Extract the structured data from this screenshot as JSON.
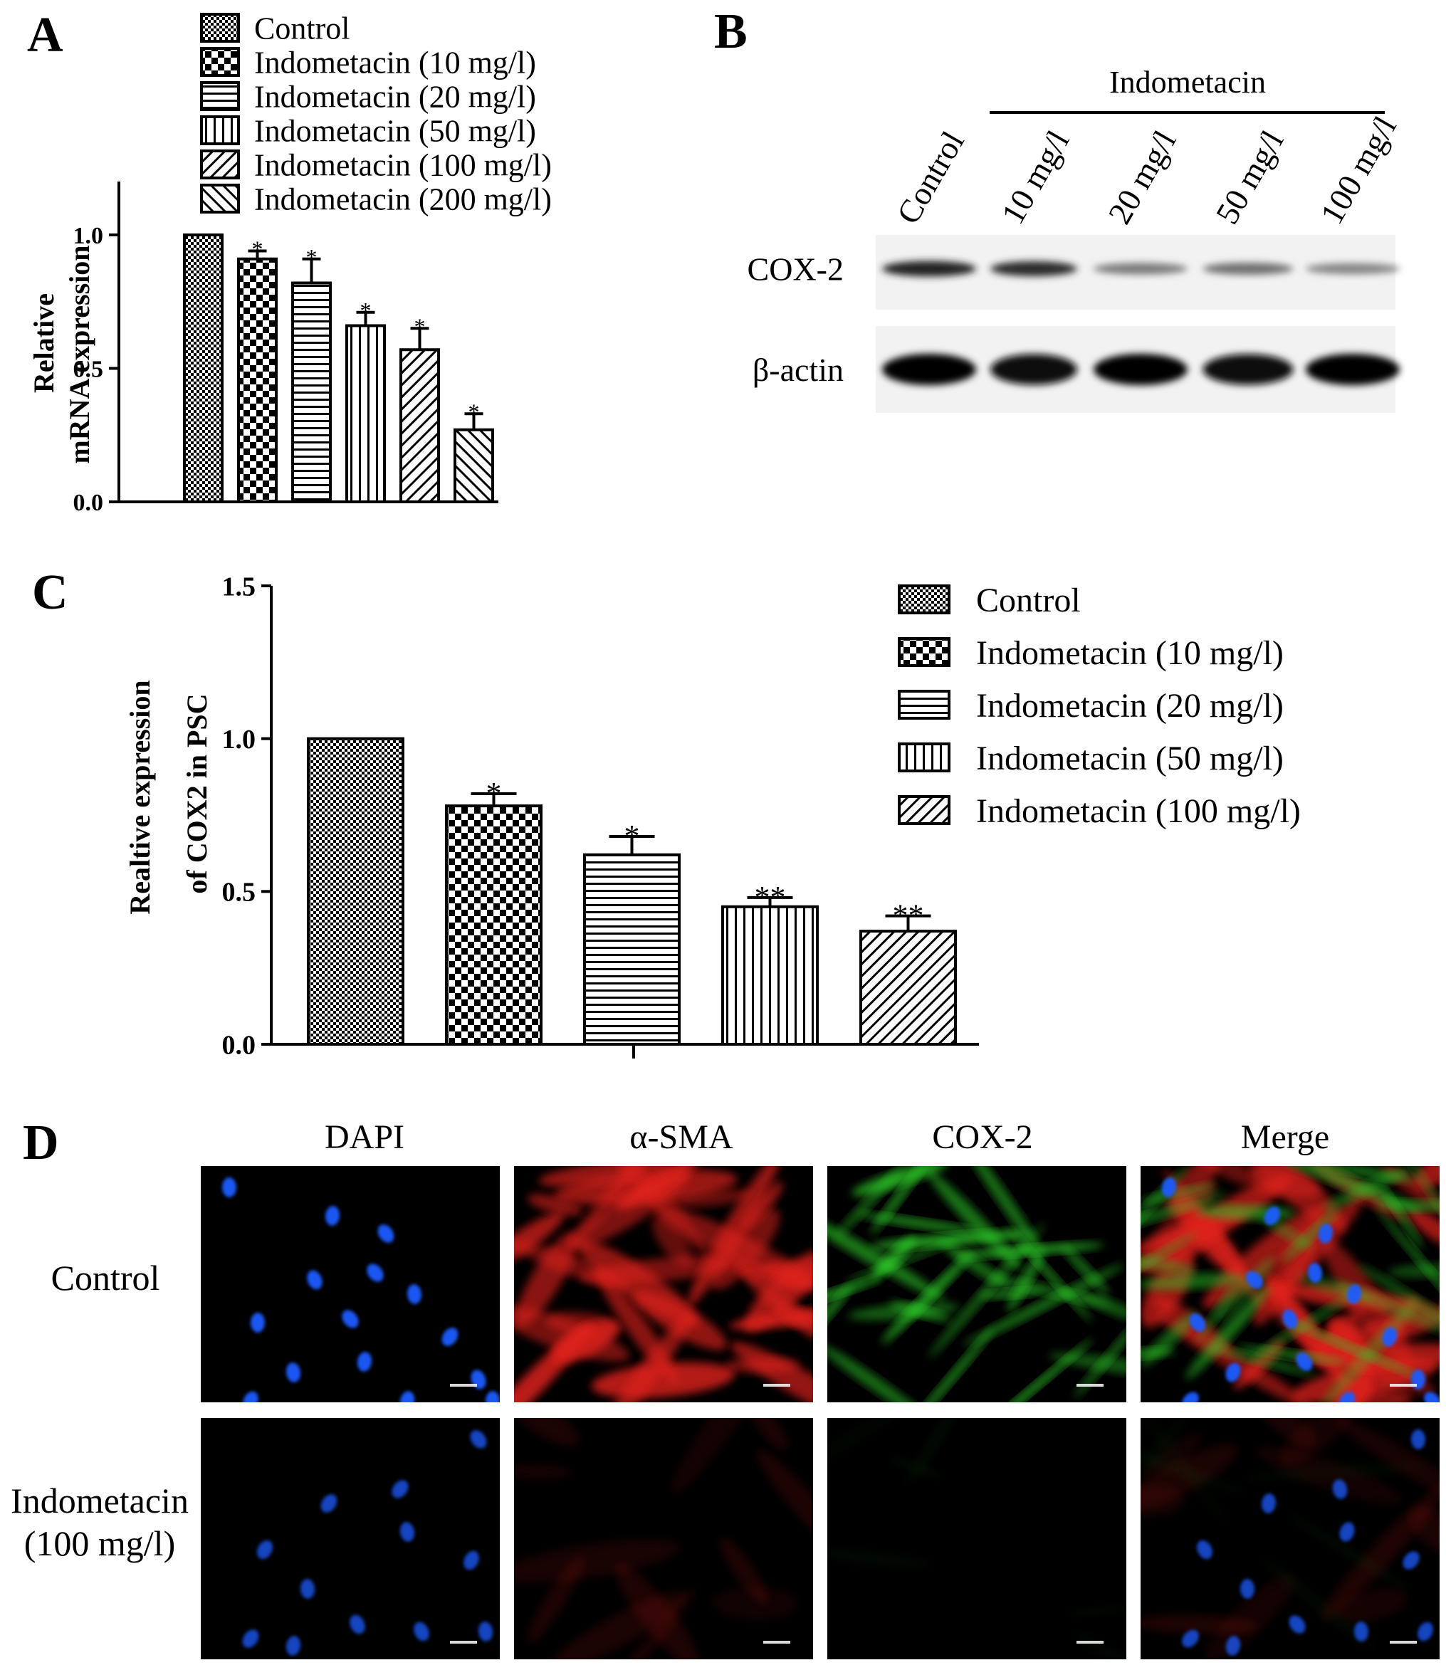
{
  "panels": {
    "A": {
      "letter": "A",
      "chart_data": {
        "type": "bar",
        "categories": [
          "Control",
          "Indometacin (10 mg/l)",
          "Indometacin (20 mg/l)",
          "Indometacin (50 mg/l)",
          "Indometacin (100 mg/l)",
          "Indometacin (200 mg/l)"
        ],
        "values": [
          1.0,
          0.91,
          0.82,
          0.66,
          0.57,
          0.27
        ],
        "errors": [
          0.0,
          0.03,
          0.09,
          0.05,
          0.08,
          0.06
        ],
        "significance": [
          "",
          "*",
          "*",
          "*",
          "*",
          "*"
        ],
        "patterns": [
          "fine-check",
          "checker",
          "horizontal",
          "vertical",
          "diag-right",
          "diag-left"
        ],
        "ylabel_lines": [
          "Relative",
          "mRNA expression"
        ],
        "ylim": [
          0,
          1.2
        ],
        "yticks": [
          "0.0",
          "0.5",
          "1.0"
        ],
        "legend": [
          "Control",
          "Indometacin (10 mg/l)",
          "Indometacin (20 mg/l)",
          "Indometacin (50 mg/l)",
          "Indometacin (100 mg/l)",
          "Indometacin (200 mg/l)"
        ],
        "legend_placement": "top"
      }
    },
    "B": {
      "letter": "B",
      "group_label": "Indometacin",
      "lanes": [
        "Control",
        "10 mg/l",
        "20 mg/l",
        "50 mg/l",
        "100 mg/l"
      ],
      "rows": [
        {
          "label": "COX-2",
          "intensity": [
            0.85,
            0.8,
            0.45,
            0.5,
            0.4
          ]
        },
        {
          "label": "β-actin",
          "intensity": [
            1.0,
            0.95,
            1.0,
            0.95,
            1.0
          ]
        }
      ]
    },
    "C": {
      "letter": "C",
      "chart_data": {
        "type": "bar",
        "categories": [
          "Control",
          "Indometacin (10 mg/l)",
          "Indometacin (20 mg/l)",
          "Indometacin (50 mg/l)",
          "Indometacin (100 mg/l)"
        ],
        "values": [
          1.0,
          0.78,
          0.62,
          0.45,
          0.37
        ],
        "errors": [
          0.0,
          0.04,
          0.06,
          0.03,
          0.05
        ],
        "significance": [
          "",
          "*",
          "*",
          "**",
          "**"
        ],
        "patterns": [
          "fine-check",
          "checker",
          "horizontal",
          "vertical",
          "diag-right"
        ],
        "ylabel_lines": [
          "Realtive expression",
          "of COX2 in PSC"
        ],
        "ylim": [
          0,
          1.5
        ],
        "yticks": [
          "0.0",
          "0.5",
          "1.0",
          "1.5"
        ],
        "legend": [
          "Control",
          "Indometacin (10 mg/l)",
          "Indometacin (20 mg/l)",
          "Indometacin (50 mg/l)",
          "Indometacin (100 mg/l)"
        ],
        "legend_placement": "right"
      }
    },
    "D": {
      "letter": "D",
      "columns": [
        "DAPI",
        "α-SMA",
        "COX-2",
        "Merge"
      ],
      "rows": [
        {
          "label_lines": [
            "Control"
          ],
          "intensity": "high"
        },
        {
          "label_lines": [
            "Indometacin",
            "(100 mg/l)"
          ],
          "intensity": "low"
        }
      ]
    }
  },
  "colors": {
    "background": "#ffffff",
    "ink": "#000000",
    "micro_background": "#000000",
    "dapi": "#1a5cff",
    "asma": "#e0201a",
    "cox2": "#2fd02a"
  }
}
